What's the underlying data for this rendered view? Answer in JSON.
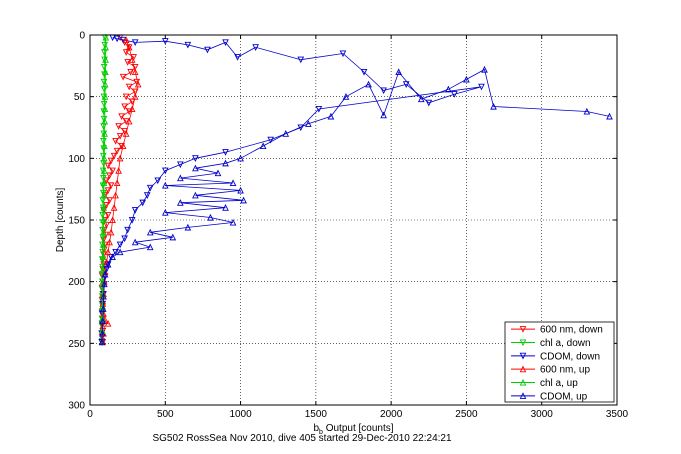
{
  "chart_data": {
    "type": "scatter",
    "xlabel_main": "b",
    "xlabel_sub": "b",
    "xlabel_rest": " Output [counts]",
    "ylabel": "Depth [counts]",
    "caption": "SG502 RossSea Nov 2010, dive 405 started 29-Dec-2010 22:24:21",
    "xlim": [
      0,
      3500
    ],
    "ylim": [
      0,
      300
    ],
    "y_reversed": true,
    "grid": true,
    "legend_position": "bottom-right",
    "xticks": [
      0,
      500,
      1000,
      1500,
      2000,
      2500,
      3000,
      3500
    ],
    "yticks": [
      0,
      50,
      100,
      150,
      200,
      250,
      300
    ],
    "xtick_labels": [
      "0",
      "500",
      "1000",
      "1500",
      "2000",
      "2500",
      "3000",
      "3500"
    ],
    "ytick_labels": [
      "0",
      "50",
      "100",
      "150",
      "200",
      "250",
      "300"
    ],
    "series": [
      {
        "name": "600 nm, down",
        "color": "#ff0000",
        "marker": "down",
        "points": [
          [
            200,
            2
          ],
          [
            230,
            6
          ],
          [
            260,
            10
          ],
          [
            240,
            14
          ],
          [
            290,
            18
          ],
          [
            250,
            22
          ],
          [
            300,
            26
          ],
          [
            270,
            30
          ],
          [
            220,
            34
          ],
          [
            310,
            38
          ],
          [
            260,
            42
          ],
          [
            300,
            46
          ],
          [
            240,
            50
          ],
          [
            280,
            54
          ],
          [
            230,
            58
          ],
          [
            260,
            62
          ],
          [
            210,
            66
          ],
          [
            240,
            70
          ],
          [
            190,
            74
          ],
          [
            230,
            78
          ],
          [
            200,
            82
          ],
          [
            170,
            86
          ],
          [
            210,
            90
          ],
          [
            180,
            94
          ],
          [
            160,
            98
          ],
          [
            140,
            102
          ],
          [
            120,
            106
          ],
          [
            150,
            110
          ],
          [
            130,
            114
          ],
          [
            110,
            118
          ],
          [
            140,
            122
          ],
          [
            120,
            126
          ],
          [
            100,
            130
          ],
          [
            130,
            134
          ],
          [
            110,
            138
          ],
          [
            90,
            142
          ],
          [
            120,
            146
          ],
          [
            100,
            150
          ],
          [
            110,
            154
          ],
          [
            95,
            158
          ],
          [
            105,
            162
          ],
          [
            90,
            166
          ],
          [
            100,
            170
          ],
          [
            95,
            174
          ],
          [
            90,
            178
          ],
          [
            85,
            182
          ],
          [
            90,
            186
          ],
          [
            85,
            190
          ],
          [
            80,
            195
          ],
          [
            85,
            200
          ],
          [
            80,
            205
          ],
          [
            85,
            210
          ],
          [
            80,
            215
          ],
          [
            85,
            220
          ],
          [
            80,
            225
          ],
          [
            85,
            230
          ],
          [
            80,
            235
          ],
          [
            85,
            240
          ],
          [
            80,
            245
          ],
          [
            85,
            249
          ]
        ]
      },
      {
        "name": "chl a, down",
        "color": "#00cc00",
        "marker": "down",
        "points": [
          [
            100,
            2
          ],
          [
            98,
            8
          ],
          [
            95,
            14
          ],
          [
            97,
            20
          ],
          [
            94,
            26
          ],
          [
            96,
            32
          ],
          [
            93,
            38
          ],
          [
            95,
            44
          ],
          [
            92,
            50
          ],
          [
            94,
            56
          ],
          [
            91,
            62
          ],
          [
            93,
            68
          ],
          [
            90,
            74
          ],
          [
            92,
            80
          ],
          [
            89,
            86
          ],
          [
            91,
            92
          ],
          [
            88,
            98
          ],
          [
            90,
            104
          ],
          [
            87,
            110
          ],
          [
            89,
            116
          ],
          [
            86,
            122
          ],
          [
            88,
            128
          ],
          [
            85,
            134
          ],
          [
            87,
            140
          ],
          [
            84,
            146
          ],
          [
            86,
            152
          ],
          [
            83,
            158
          ],
          [
            85,
            164
          ],
          [
            82,
            170
          ],
          [
            84,
            176
          ],
          [
            81,
            182
          ],
          [
            83,
            188
          ],
          [
            80,
            194
          ],
          [
            82,
            200
          ],
          [
            80,
            206
          ],
          [
            81,
            212
          ],
          [
            79,
            218
          ],
          [
            81,
            224
          ],
          [
            79,
            230
          ],
          [
            80,
            236
          ],
          [
            78,
            242
          ],
          [
            80,
            248
          ]
        ]
      },
      {
        "name": "CDOM, down",
        "color": "#0000cc",
        "marker": "down",
        "points": [
          [
            150,
            2
          ],
          [
            180,
            3
          ],
          [
            220,
            4
          ],
          [
            300,
            6
          ],
          [
            500,
            5
          ],
          [
            650,
            8
          ],
          [
            780,
            12
          ],
          [
            900,
            6
          ],
          [
            980,
            18
          ],
          [
            1100,
            10
          ],
          [
            1400,
            20
          ],
          [
            1680,
            15
          ],
          [
            1820,
            30
          ],
          [
            1950,
            45
          ],
          [
            2100,
            40
          ],
          [
            2250,
            55
          ],
          [
            2420,
            48
          ],
          [
            2600,
            42
          ],
          [
            1520,
            60
          ],
          [
            1400,
            75
          ],
          [
            1200,
            85
          ],
          [
            900,
            95
          ],
          [
            700,
            100
          ],
          [
            600,
            105
          ],
          [
            500,
            110
          ],
          [
            450,
            118
          ],
          [
            400,
            124
          ],
          [
            380,
            130
          ],
          [
            350,
            136
          ],
          [
            300,
            142
          ],
          [
            280,
            150
          ],
          [
            250,
            158
          ],
          [
            230,
            165
          ],
          [
            200,
            170
          ],
          [
            170,
            176
          ],
          [
            140,
            180
          ],
          [
            120,
            186
          ],
          [
            110,
            190
          ],
          [
            100,
            196
          ],
          [
            95,
            202
          ],
          [
            90,
            210
          ],
          [
            85,
            218
          ],
          [
            80,
            226
          ],
          [
            80,
            234
          ],
          [
            78,
            242
          ],
          [
            78,
            249
          ]
        ]
      },
      {
        "name": "600 nm, up",
        "color": "#ff0000",
        "marker": "up",
        "points": [
          [
            85,
            249
          ],
          [
            90,
            242
          ],
          [
            85,
            236
          ],
          [
            95,
            232
          ],
          [
            120,
            234
          ],
          [
            90,
            226
          ],
          [
            85,
            218
          ],
          [
            90,
            210
          ],
          [
            95,
            200
          ],
          [
            100,
            192
          ],
          [
            110,
            184
          ],
          [
            120,
            176
          ],
          [
            130,
            168
          ],
          [
            140,
            160
          ],
          [
            150,
            150
          ],
          [
            160,
            140
          ],
          [
            170,
            130
          ],
          [
            180,
            120
          ],
          [
            190,
            110
          ],
          [
            200,
            100
          ],
          [
            220,
            90
          ],
          [
            240,
            80
          ],
          [
            260,
            70
          ],
          [
            280,
            60
          ],
          [
            300,
            50
          ],
          [
            320,
            40
          ],
          [
            300,
            30
          ],
          [
            280,
            20
          ],
          [
            260,
            10
          ],
          [
            240,
            4
          ]
        ]
      },
      {
        "name": "chl a, up",
        "color": "#00cc00",
        "marker": "up",
        "points": [
          [
            80,
            249
          ],
          [
            81,
            240
          ],
          [
            82,
            230
          ],
          [
            83,
            220
          ],
          [
            84,
            210
          ],
          [
            85,
            200
          ],
          [
            86,
            190
          ],
          [
            87,
            180
          ],
          [
            88,
            170
          ],
          [
            89,
            160
          ],
          [
            90,
            150
          ],
          [
            91,
            140
          ],
          [
            92,
            130
          ],
          [
            93,
            120
          ],
          [
            94,
            110
          ],
          [
            95,
            100
          ],
          [
            96,
            90
          ],
          [
            97,
            80
          ],
          [
            98,
            70
          ],
          [
            99,
            60
          ],
          [
            100,
            50
          ],
          [
            101,
            40
          ],
          [
            102,
            30
          ],
          [
            103,
            20
          ],
          [
            104,
            10
          ],
          [
            105,
            2
          ]
        ]
      },
      {
        "name": "CDOM, up",
        "color": "#0000cc",
        "marker": "up",
        "points": [
          [
            3450,
            66
          ],
          [
            3300,
            62
          ],
          [
            2680,
            58
          ],
          [
            2620,
            28
          ],
          [
            2500,
            36
          ],
          [
            2380,
            44
          ],
          [
            2200,
            52
          ],
          [
            2050,
            30
          ],
          [
            1950,
            65
          ],
          [
            1850,
            40
          ],
          [
            1700,
            50
          ],
          [
            1600,
            66
          ],
          [
            1450,
            72
          ],
          [
            1300,
            80
          ],
          [
            1150,
            90
          ],
          [
            1000,
            100
          ],
          [
            900,
            104
          ],
          [
            700,
            108
          ],
          [
            850,
            112
          ],
          [
            600,
            116
          ],
          [
            950,
            120
          ],
          [
            500,
            122
          ],
          [
            1000,
            126
          ],
          [
            700,
            130
          ],
          [
            1020,
            134
          ],
          [
            600,
            136
          ],
          [
            900,
            140
          ],
          [
            500,
            144
          ],
          [
            800,
            148
          ],
          [
            950,
            152
          ],
          [
            650,
            156
          ],
          [
            400,
            160
          ],
          [
            550,
            164
          ],
          [
            300,
            168
          ],
          [
            400,
            172
          ],
          [
            200,
            176
          ],
          [
            150,
            180
          ],
          [
            120,
            186
          ],
          [
            100,
            194
          ],
          [
            95,
            202
          ],
          [
            90,
            212
          ],
          [
            88,
            222
          ],
          [
            85,
            232
          ],
          [
            82,
            242
          ],
          [
            80,
            249
          ]
        ]
      }
    ]
  }
}
